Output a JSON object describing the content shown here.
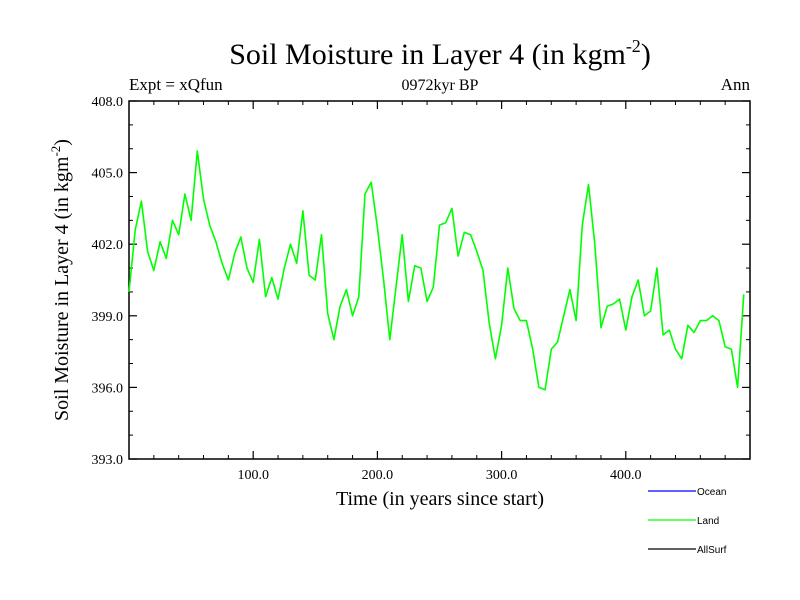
{
  "chart_data": {
    "type": "line",
    "title_main": "Soil Moisture in Layer 4 (in kgm",
    "title_sup": "-2",
    "title_close": ")",
    "subtitle": "0972kyr BP",
    "left_label": "Expt = xQfun",
    "right_label": "Ann",
    "xlabel": "Time (in years since start)",
    "ylabel_main": "Soil Moisture in Layer 4 (in kgm",
    "ylabel_sup": "-2",
    "ylabel_close": ")",
    "xlim": [
      0,
      500
    ],
    "ylim": [
      393.0,
      408.0
    ],
    "x_ticks": [
      100,
      200,
      300,
      400
    ],
    "x_tick_labels": [
      "100.0",
      "200.0",
      "300.0",
      "400.0"
    ],
    "y_ticks": [
      393,
      396,
      399,
      402,
      405,
      408
    ],
    "y_tick_labels": [
      "393.0",
      "396.0",
      "399.0",
      "402.0",
      "405.0",
      "408.0"
    ],
    "legend": [
      {
        "name": "Ocean",
        "color": "#0000ff"
      },
      {
        "name": "Land",
        "color": "#00ff00"
      },
      {
        "name": "AllSurf",
        "color": "#000000"
      }
    ],
    "series": [
      {
        "name": "Land",
        "color": "#00ff00",
        "x_start": 0,
        "x_step": 5,
        "values": [
          400.0,
          402.6,
          403.8,
          401.7,
          400.9,
          402.1,
          401.4,
          403.0,
          402.4,
          404.1,
          403.0,
          405.9,
          403.9,
          402.8,
          402.1,
          401.2,
          400.5,
          401.6,
          402.3,
          401.0,
          400.4,
          402.2,
          399.8,
          400.6,
          399.7,
          401.0,
          402.0,
          401.2,
          403.4,
          400.7,
          400.5,
          402.4,
          399.1,
          398.0,
          399.4,
          400.1,
          399.0,
          399.8,
          404.1,
          404.6,
          402.7,
          400.5,
          398.0,
          400.2,
          402.4,
          399.6,
          401.1,
          401.0,
          399.6,
          400.2,
          402.8,
          402.9,
          403.5,
          401.5,
          402.5,
          402.4,
          401.7,
          400.9,
          398.7,
          397.2,
          398.6,
          401.0,
          399.3,
          398.8,
          398.8,
          397.6,
          396.0,
          395.9,
          397.6,
          397.9,
          399.0,
          400.1,
          398.8,
          402.8,
          404.5,
          402.0,
          398.5,
          399.4,
          399.5,
          399.7,
          398.4,
          399.8,
          400.5,
          399.0,
          399.2,
          401.0,
          398.2,
          398.4,
          397.6,
          397.2,
          398.6,
          398.3,
          398.8,
          398.8,
          399.0,
          398.8,
          397.7,
          397.6,
          396.0,
          399.9
        ]
      }
    ]
  }
}
